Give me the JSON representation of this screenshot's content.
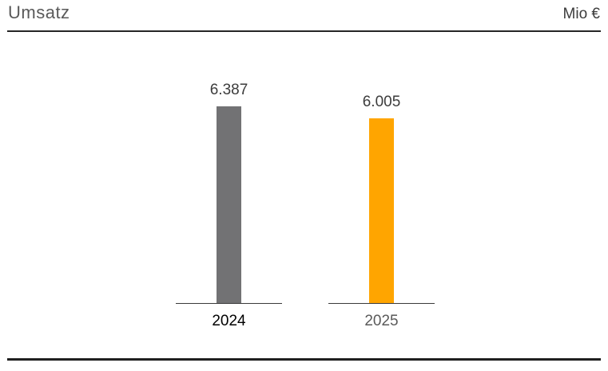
{
  "header": {
    "title": "Umsatz",
    "unit": "Mio €"
  },
  "chart_data": {
    "type": "bar",
    "title": "Umsatz",
    "ylabel": "Mio €",
    "categories": [
      "2024",
      "2025"
    ],
    "values": [
      6387,
      6005
    ],
    "value_labels": [
      "6.387",
      "6.005"
    ],
    "bar_colors": [
      "#727274",
      "#FFA500"
    ],
    "category_label_colors": [
      "#000000",
      "#5a5a5a"
    ],
    "ylim": [
      0,
      6387
    ],
    "grid": false,
    "legend": false,
    "orientation": "vertical"
  }
}
